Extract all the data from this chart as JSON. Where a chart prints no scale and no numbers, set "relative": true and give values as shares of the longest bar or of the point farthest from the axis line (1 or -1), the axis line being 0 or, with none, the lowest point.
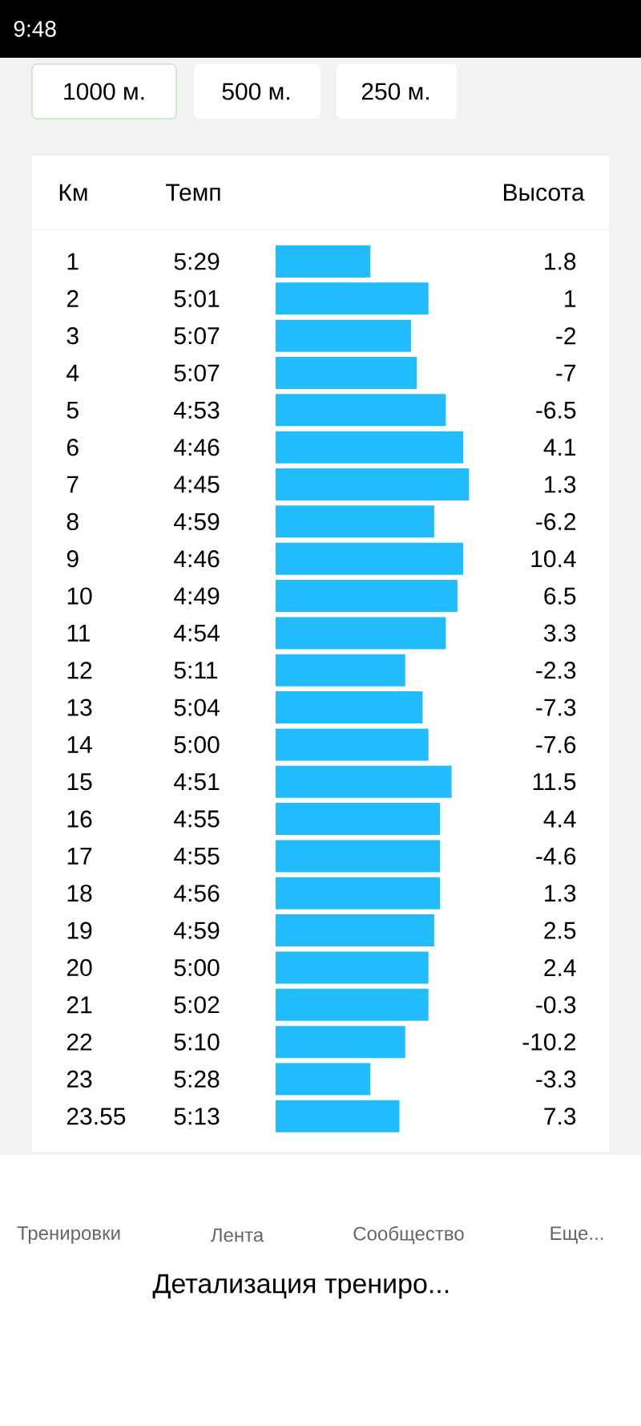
{
  "chart_data": {
    "type": "bar",
    "orientation": "horizontal",
    "relative": true,
    "color": "#22bcfc",
    "categories": [
      "1",
      "2",
      "3",
      "4",
      "5",
      "6",
      "7",
      "8",
      "9",
      "10",
      "11",
      "12",
      "13",
      "14",
      "15",
      "16",
      "17",
      "18",
      "19",
      "20",
      "21",
      "22",
      "23",
      "23.55"
    ],
    "values": [
      0.49,
      0.79,
      0.7,
      0.73,
      0.88,
      0.97,
      1,
      0.82,
      0.97,
      0.94,
      0.88,
      0.67,
      0.76,
      0.79,
      0.91,
      0.85,
      0.85,
      0.85,
      0.82,
      0.79,
      0.79,
      0.67,
      0.49,
      0.64
    ],
    "annotations": [
      "9:48",
      "1000 м.",
      "500 м.",
      "250 м.",
      "Км",
      "Темп",
      "Высота",
      "Тренировки",
      "Лента",
      "Сообщество",
      "Еще...",
      "Детализация трениро...",
      "5:29",
      "5:01",
      "5:07",
      "5:07",
      "4:53",
      "4:46",
      "4:45",
      "4:59",
      "4:46",
      "4:49",
      "4:54",
      "5:11",
      "5:04",
      "5:00",
      "4:51",
      "4:55",
      "4:55",
      "4:56",
      "4:59",
      "5:00",
      "5:02",
      "5:10",
      "5:28",
      "5:13",
      "1.8",
      "1",
      "-2",
      "-7",
      "-6.5",
      "4.1",
      "1.3",
      "-6.2",
      "10.4",
      "6.5",
      "3.3",
      "-2.3",
      "-7.3",
      "-7.6",
      "11.5",
      "4.4",
      "-4.6",
      "1.3",
      "2.5",
      "2.4",
      "-0.3",
      "-10.2",
      "-3.3",
      "7.3"
    ]
  }
}
